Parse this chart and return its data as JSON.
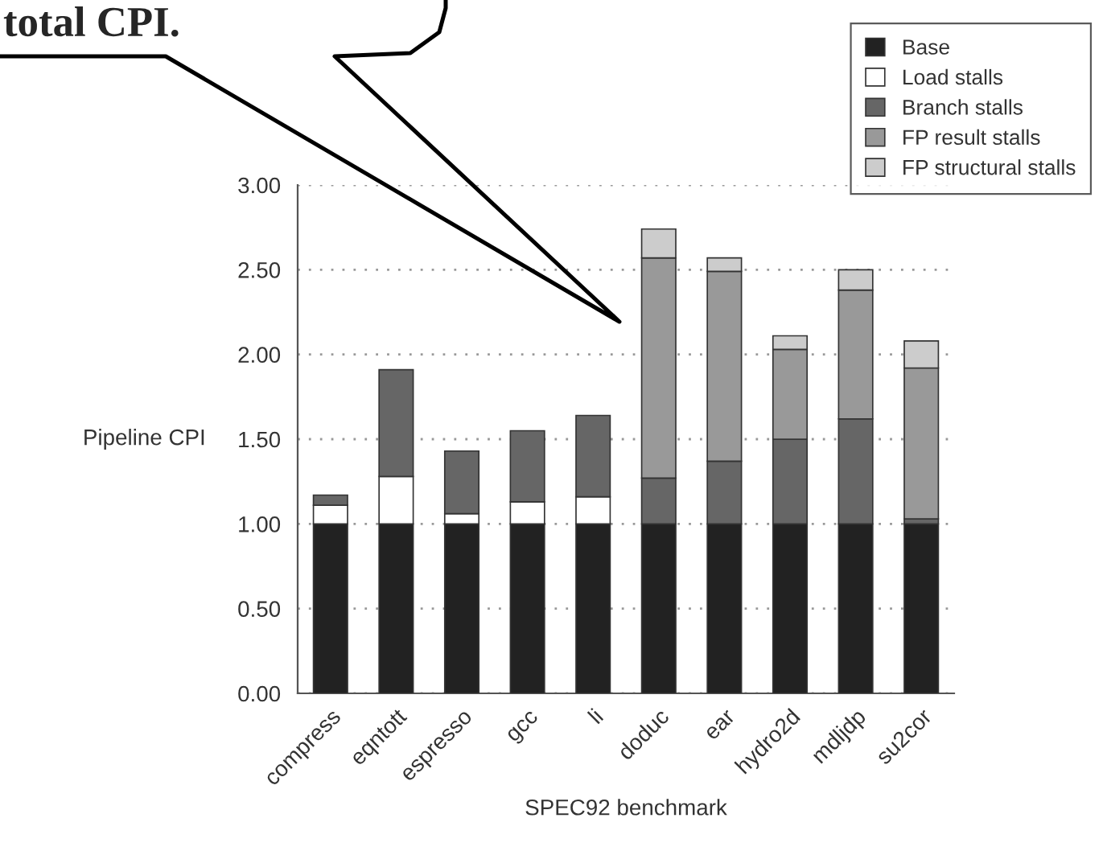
{
  "chart_data": {
    "type": "bar",
    "stacked": true,
    "categories": [
      "compress",
      "eqntott",
      "espresso",
      "gcc",
      "li",
      "doduc",
      "ear",
      "hydro2d",
      "mdljdp",
      "su2cor"
    ],
    "series": [
      {
        "name": "Base",
        "color": "#222222",
        "values": [
          1.0,
          1.0,
          1.0,
          1.0,
          1.0,
          1.0,
          1.0,
          1.0,
          1.0,
          1.0
        ]
      },
      {
        "name": "Load stalls",
        "color": "#ffffff",
        "values": [
          0.11,
          0.28,
          0.06,
          0.13,
          0.16,
          null,
          null,
          null,
          null,
          null
        ]
      },
      {
        "name": "Branch stalls",
        "color": "#666666",
        "values": [
          0.06,
          0.63,
          0.37,
          0.42,
          0.48,
          0.27,
          0.37,
          0.5,
          0.62,
          0.03
        ]
      },
      {
        "name": "FP result stalls",
        "color": "#999999",
        "values": [
          null,
          null,
          null,
          null,
          null,
          1.3,
          1.12,
          0.53,
          0.76,
          0.89
        ]
      },
      {
        "name": "FP structural stalls",
        "color": "#cccccc",
        "values": [
          null,
          null,
          null,
          null,
          null,
          0.17,
          0.08,
          0.08,
          0.12,
          0.16
        ]
      }
    ],
    "ylim": [
      0,
      3
    ],
    "yticks": [
      {
        "value": 0,
        "label": "0.00"
      },
      {
        "value": 0.5,
        "label": "0.50"
      },
      {
        "value": 1,
        "label": "1.00"
      },
      {
        "value": 1.5,
        "label": "1.50"
      },
      {
        "value": 2,
        "label": "2.00"
      },
      {
        "value": 2.5,
        "label": "2.50"
      },
      {
        "value": 3,
        "label": "3.00"
      }
    ],
    "xlabel": "SPEC92 benchmark",
    "ylabel": "Pipeline CPI",
    "grid": "y",
    "legend": "top right",
    "annotations": [
      "total CPI."
    ]
  }
}
